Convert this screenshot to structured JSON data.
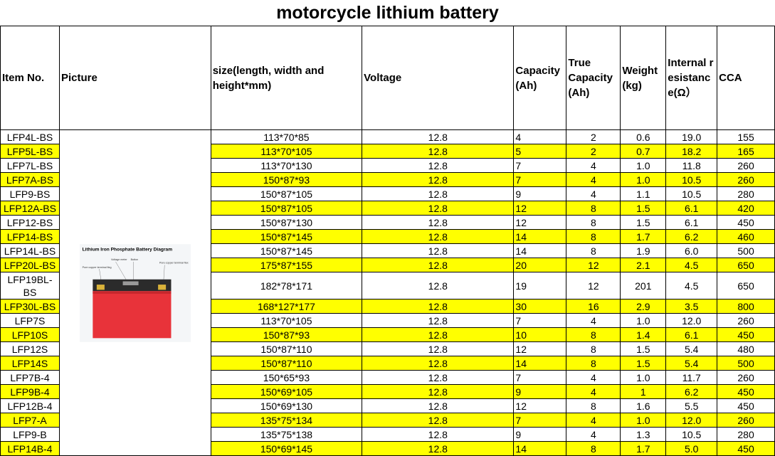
{
  "title": "motorcycle lithium battery",
  "headers": {
    "item_no": "Item No.",
    "picture": "Picture",
    "size": "size(length, width and height*mm)",
    "voltage": "Voltage",
    "capacity": "Capacity (Ah)",
    "true_capacity": "True Capacity (Ah)",
    "weight": "Weight (kg)",
    "resistance": "Internal resistance(Ω）",
    "cca": "CCA"
  },
  "picture": {
    "diagram_title": "Lithium Iron Phosphate Battery Diagram",
    "label_voltage_meter": "Voltage meter",
    "label_button": "Button",
    "label_terminal_left": "Pure copper terminal fleg",
    "label_terminal_right": "Pure copper terminal flex",
    "colors": {
      "body": "#e8333a",
      "top": "#2b2b2b",
      "terminal": "#d9b23a",
      "title": "#1c3c9c"
    }
  },
  "highlight_color": "#ffff00",
  "rows": [
    {
      "item": "LFP4L-BS",
      "size": "113*70*85",
      "voltage": "12.8",
      "capacity": "4",
      "true_capacity": "2",
      "weight": "0.6",
      "resistance": "19.0",
      "cca": "155",
      "highlight": false
    },
    {
      "item": "LFP5L-BS",
      "size": "113*70*105",
      "voltage": "12.8",
      "capacity": "5",
      "true_capacity": "2",
      "weight": "0.7",
      "resistance": "18.2",
      "cca": "165",
      "highlight": true
    },
    {
      "item": "LFP7L-BS",
      "size": "113*70*130",
      "voltage": "12.8",
      "capacity": "7",
      "true_capacity": "4",
      "weight": "1.0",
      "resistance": "11.8",
      "cca": "260",
      "highlight": false
    },
    {
      "item": "LFP7A-BS",
      "size": "150*87*93",
      "voltage": "12.8",
      "capacity": "7",
      "true_capacity": "4",
      "weight": "1.0",
      "resistance": "10.5",
      "cca": "260",
      "highlight": true
    },
    {
      "item": "LFP9-BS",
      "size": "150*87*105",
      "voltage": "12.8",
      "capacity": "9",
      "true_capacity": "4",
      "weight": "1.1",
      "resistance": "10.5",
      "cca": "280",
      "highlight": false
    },
    {
      "item": "LFP12A-BS",
      "size": "150*87*105",
      "voltage": "12.8",
      "capacity": "12",
      "true_capacity": "8",
      "weight": "1.5",
      "resistance": "6.1",
      "cca": "420",
      "highlight": true
    },
    {
      "item": "LFP12-BS",
      "size": "150*87*130",
      "voltage": "12.8",
      "capacity": "12",
      "true_capacity": "8",
      "weight": "1.5",
      "resistance": "6.1",
      "cca": "450",
      "highlight": false
    },
    {
      "item": "LFP14-BS",
      "size": "150*87*145",
      "voltage": "12.8",
      "capacity": "14",
      "true_capacity": "8",
      "weight": "1.7",
      "resistance": "6.2",
      "cca": "460",
      "highlight": true
    },
    {
      "item": "LFP14L-BS",
      "size": "150*87*145",
      "voltage": "12.8",
      "capacity": "14",
      "true_capacity": "8",
      "weight": "1.9",
      "resistance": "6.0",
      "cca": "500",
      "highlight": false
    },
    {
      "item": "LFP20L-BS",
      "size": "175*87*155",
      "voltage": "12.8",
      "capacity": "20",
      "true_capacity": "12",
      "weight": "2.1",
      "resistance": "4.5",
      "cca": "650",
      "highlight": true
    },
    {
      "item": "LFP19BL-BS",
      "size": "182*78*171",
      "voltage": "12.8",
      "capacity": "19",
      "true_capacity": "12",
      "weight": "201",
      "resistance": "4.5",
      "cca": "650",
      "highlight": false,
      "tall": true
    },
    {
      "item": "LFP30L-BS",
      "size": "168*127*177",
      "voltage": "12.8",
      "capacity": "30",
      "true_capacity": "16",
      "weight": "2.9",
      "resistance": "3.5",
      "cca": "800",
      "highlight": true
    },
    {
      "item": "LFP7S",
      "size": "113*70*105",
      "voltage": "12.8",
      "capacity": "7",
      "true_capacity": "4",
      "weight": "1.0",
      "resistance": "12.0",
      "cca": "260",
      "highlight": false
    },
    {
      "item": "LFP10S",
      "size": "150*87*93",
      "voltage": "12.8",
      "capacity": "10",
      "true_capacity": "8",
      "weight": "1.4",
      "resistance": "6.1",
      "cca": "450",
      "highlight": true
    },
    {
      "item": "LFP12S",
      "size": "150*87*110",
      "voltage": "12.8",
      "capacity": "12",
      "true_capacity": "8",
      "weight": "1.5",
      "resistance": "5.4",
      "cca": "480",
      "highlight": false
    },
    {
      "item": "LFP14S",
      "size": "150*87*110",
      "voltage": "12.8",
      "capacity": "14",
      "true_capacity": "8",
      "weight": "1.5",
      "resistance": "5.4",
      "cca": "500",
      "highlight": true
    },
    {
      "item": "LFP7B-4",
      "size": "150*65*93",
      "voltage": "12.8",
      "capacity": "7",
      "true_capacity": "4",
      "weight": "1.0",
      "resistance": "11.7",
      "cca": "260",
      "highlight": false
    },
    {
      "item": "LFP9B-4",
      "size": "150*69*105",
      "voltage": "12.8",
      "capacity": "9",
      "true_capacity": "4",
      "weight": "1",
      "resistance": "6.2",
      "cca": "450",
      "highlight": true
    },
    {
      "item": "LFP12B-4",
      "size": "150*69*130",
      "voltage": "12.8",
      "capacity": "12",
      "true_capacity": "8",
      "weight": "1.6",
      "resistance": "5.5",
      "cca": "450",
      "highlight": false
    },
    {
      "item": "LFP7-A",
      "size": "135*75*134",
      "voltage": "12.8",
      "capacity": "7",
      "true_capacity": "4",
      "weight": "1.0",
      "resistance": "12.0",
      "cca": "260",
      "highlight": true
    },
    {
      "item": "LFP9-B",
      "size": "135*75*138",
      "voltage": "12.8",
      "capacity": "9",
      "true_capacity": "4",
      "weight": "1.3",
      "resistance": "10.5",
      "cca": "280",
      "highlight": false
    },
    {
      "item": "LFP14B-4",
      "size": "150*69*145",
      "voltage": "12.8",
      "capacity": "14",
      "true_capacity": "8",
      "weight": "1.7",
      "resistance": "5.0",
      "cca": "450",
      "highlight": true
    }
  ]
}
